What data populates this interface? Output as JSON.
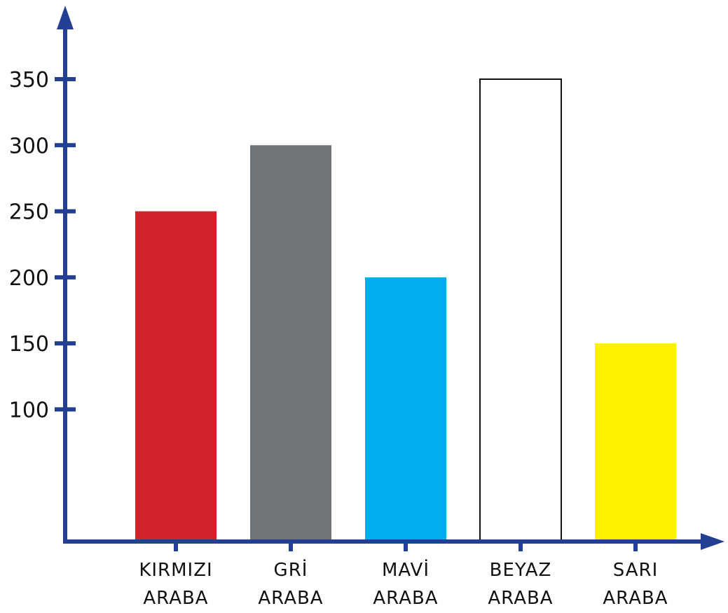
{
  "chart_data": {
    "type": "bar",
    "title": "",
    "xlabel": "",
    "ylabel": "",
    "categories": [
      [
        "KIRMIZI",
        "ARABA"
      ],
      [
        "GRİ",
        "ARABA"
      ],
      [
        "MAVİ",
        "ARABA"
      ],
      [
        "BEYAZ",
        "ARABA"
      ],
      [
        "SARI",
        "ARABA"
      ]
    ],
    "values": [
      250,
      300,
      200,
      350,
      150
    ],
    "bar_colors": [
      "#d2232a",
      "#6f7578",
      "#00aeef",
      "#ffffff",
      "#fff200"
    ],
    "bar_outline": [
      "",
      "",
      "",
      "#111111",
      ""
    ],
    "yticks": [
      100,
      150,
      200,
      250,
      300,
      350
    ],
    "ylim": [
      0,
      350
    ],
    "axis_color": "#233f94",
    "grid": false,
    "legend": "none"
  }
}
